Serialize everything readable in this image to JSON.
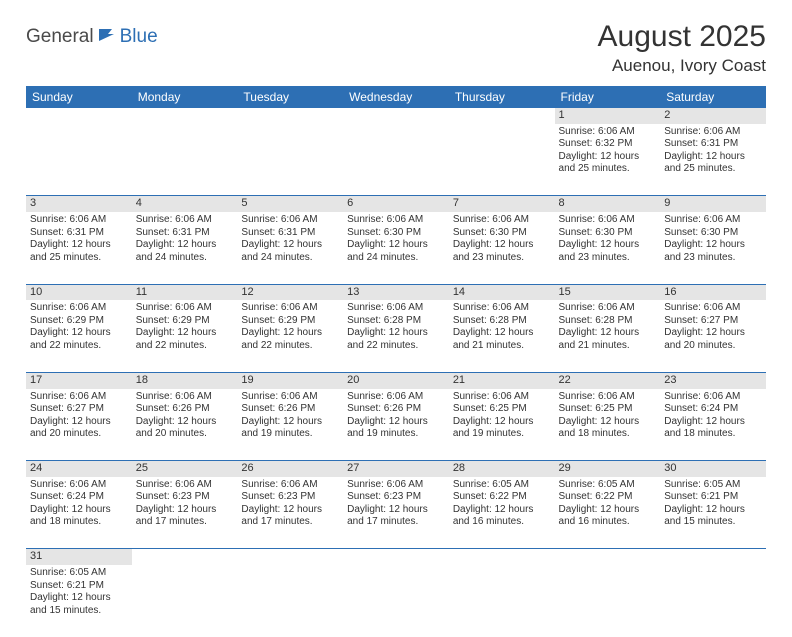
{
  "logo": {
    "general": "General",
    "blue": "Blue"
  },
  "title": "August 2025",
  "location": "Auenou, Ivory Coast",
  "colors": {
    "header_bg": "#2d6fb4",
    "header_text": "#ffffff",
    "daynum_bg": "#e5e5e5",
    "cell_border": "#2d6fb4",
    "text": "#333333"
  },
  "dayNames": [
    "Sunday",
    "Monday",
    "Tuesday",
    "Wednesday",
    "Thursday",
    "Friday",
    "Saturday"
  ],
  "weeks": [
    [
      null,
      null,
      null,
      null,
      null,
      {
        "n": "1",
        "sr": "Sunrise: 6:06 AM",
        "ss": "Sunset: 6:32 PM",
        "dl": "Daylight: 12 hours and 25 minutes."
      },
      {
        "n": "2",
        "sr": "Sunrise: 6:06 AM",
        "ss": "Sunset: 6:31 PM",
        "dl": "Daylight: 12 hours and 25 minutes."
      }
    ],
    [
      {
        "n": "3",
        "sr": "Sunrise: 6:06 AM",
        "ss": "Sunset: 6:31 PM",
        "dl": "Daylight: 12 hours and 25 minutes."
      },
      {
        "n": "4",
        "sr": "Sunrise: 6:06 AM",
        "ss": "Sunset: 6:31 PM",
        "dl": "Daylight: 12 hours and 24 minutes."
      },
      {
        "n": "5",
        "sr": "Sunrise: 6:06 AM",
        "ss": "Sunset: 6:31 PM",
        "dl": "Daylight: 12 hours and 24 minutes."
      },
      {
        "n": "6",
        "sr": "Sunrise: 6:06 AM",
        "ss": "Sunset: 6:30 PM",
        "dl": "Daylight: 12 hours and 24 minutes."
      },
      {
        "n": "7",
        "sr": "Sunrise: 6:06 AM",
        "ss": "Sunset: 6:30 PM",
        "dl": "Daylight: 12 hours and 23 minutes."
      },
      {
        "n": "8",
        "sr": "Sunrise: 6:06 AM",
        "ss": "Sunset: 6:30 PM",
        "dl": "Daylight: 12 hours and 23 minutes."
      },
      {
        "n": "9",
        "sr": "Sunrise: 6:06 AM",
        "ss": "Sunset: 6:30 PM",
        "dl": "Daylight: 12 hours and 23 minutes."
      }
    ],
    [
      {
        "n": "10",
        "sr": "Sunrise: 6:06 AM",
        "ss": "Sunset: 6:29 PM",
        "dl": "Daylight: 12 hours and 22 minutes."
      },
      {
        "n": "11",
        "sr": "Sunrise: 6:06 AM",
        "ss": "Sunset: 6:29 PM",
        "dl": "Daylight: 12 hours and 22 minutes."
      },
      {
        "n": "12",
        "sr": "Sunrise: 6:06 AM",
        "ss": "Sunset: 6:29 PM",
        "dl": "Daylight: 12 hours and 22 minutes."
      },
      {
        "n": "13",
        "sr": "Sunrise: 6:06 AM",
        "ss": "Sunset: 6:28 PM",
        "dl": "Daylight: 12 hours and 22 minutes."
      },
      {
        "n": "14",
        "sr": "Sunrise: 6:06 AM",
        "ss": "Sunset: 6:28 PM",
        "dl": "Daylight: 12 hours and 21 minutes."
      },
      {
        "n": "15",
        "sr": "Sunrise: 6:06 AM",
        "ss": "Sunset: 6:28 PM",
        "dl": "Daylight: 12 hours and 21 minutes."
      },
      {
        "n": "16",
        "sr": "Sunrise: 6:06 AM",
        "ss": "Sunset: 6:27 PM",
        "dl": "Daylight: 12 hours and 20 minutes."
      }
    ],
    [
      {
        "n": "17",
        "sr": "Sunrise: 6:06 AM",
        "ss": "Sunset: 6:27 PM",
        "dl": "Daylight: 12 hours and 20 minutes."
      },
      {
        "n": "18",
        "sr": "Sunrise: 6:06 AM",
        "ss": "Sunset: 6:26 PM",
        "dl": "Daylight: 12 hours and 20 minutes."
      },
      {
        "n": "19",
        "sr": "Sunrise: 6:06 AM",
        "ss": "Sunset: 6:26 PM",
        "dl": "Daylight: 12 hours and 19 minutes."
      },
      {
        "n": "20",
        "sr": "Sunrise: 6:06 AM",
        "ss": "Sunset: 6:26 PM",
        "dl": "Daylight: 12 hours and 19 minutes."
      },
      {
        "n": "21",
        "sr": "Sunrise: 6:06 AM",
        "ss": "Sunset: 6:25 PM",
        "dl": "Daylight: 12 hours and 19 minutes."
      },
      {
        "n": "22",
        "sr": "Sunrise: 6:06 AM",
        "ss": "Sunset: 6:25 PM",
        "dl": "Daylight: 12 hours and 18 minutes."
      },
      {
        "n": "23",
        "sr": "Sunrise: 6:06 AM",
        "ss": "Sunset: 6:24 PM",
        "dl": "Daylight: 12 hours and 18 minutes."
      }
    ],
    [
      {
        "n": "24",
        "sr": "Sunrise: 6:06 AM",
        "ss": "Sunset: 6:24 PM",
        "dl": "Daylight: 12 hours and 18 minutes."
      },
      {
        "n": "25",
        "sr": "Sunrise: 6:06 AM",
        "ss": "Sunset: 6:23 PM",
        "dl": "Daylight: 12 hours and 17 minutes."
      },
      {
        "n": "26",
        "sr": "Sunrise: 6:06 AM",
        "ss": "Sunset: 6:23 PM",
        "dl": "Daylight: 12 hours and 17 minutes."
      },
      {
        "n": "27",
        "sr": "Sunrise: 6:06 AM",
        "ss": "Sunset: 6:23 PM",
        "dl": "Daylight: 12 hours and 17 minutes."
      },
      {
        "n": "28",
        "sr": "Sunrise: 6:05 AM",
        "ss": "Sunset: 6:22 PM",
        "dl": "Daylight: 12 hours and 16 minutes."
      },
      {
        "n": "29",
        "sr": "Sunrise: 6:05 AM",
        "ss": "Sunset: 6:22 PM",
        "dl": "Daylight: 12 hours and 16 minutes."
      },
      {
        "n": "30",
        "sr": "Sunrise: 6:05 AM",
        "ss": "Sunset: 6:21 PM",
        "dl": "Daylight: 12 hours and 15 minutes."
      }
    ],
    [
      {
        "n": "31",
        "sr": "Sunrise: 6:05 AM",
        "ss": "Sunset: 6:21 PM",
        "dl": "Daylight: 12 hours and 15 minutes."
      },
      null,
      null,
      null,
      null,
      null,
      null
    ]
  ]
}
